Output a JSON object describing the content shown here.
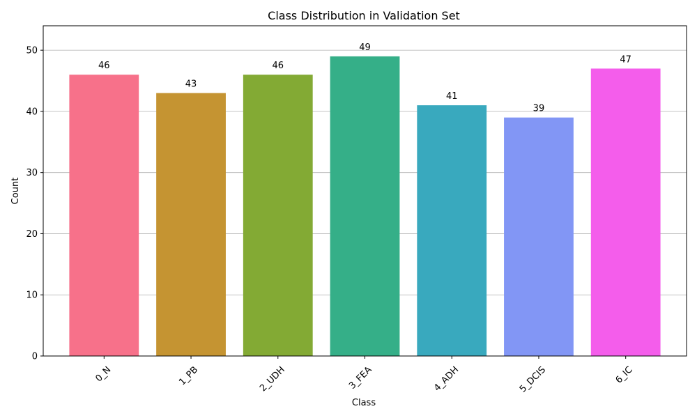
{
  "chart_data": {
    "type": "bar",
    "title": "Class Distribution in Validation Set",
    "xlabel": "Class",
    "ylabel": "Count",
    "categories": [
      "0_N",
      "1_PB",
      "2_UDH",
      "3_FEA",
      "4_ADH",
      "5_DCIS",
      "6_IC"
    ],
    "values": [
      46,
      43,
      46,
      49,
      41,
      39,
      47
    ],
    "colors": [
      "#f7718a",
      "#c59432",
      "#83aa34",
      "#35af88",
      "#39a9be",
      "#8296f5",
      "#f45deb"
    ],
    "ylim": [
      0,
      54
    ],
    "yticks": [
      0,
      10,
      20,
      30,
      40,
      50
    ],
    "grid": "y",
    "legend": "none"
  }
}
